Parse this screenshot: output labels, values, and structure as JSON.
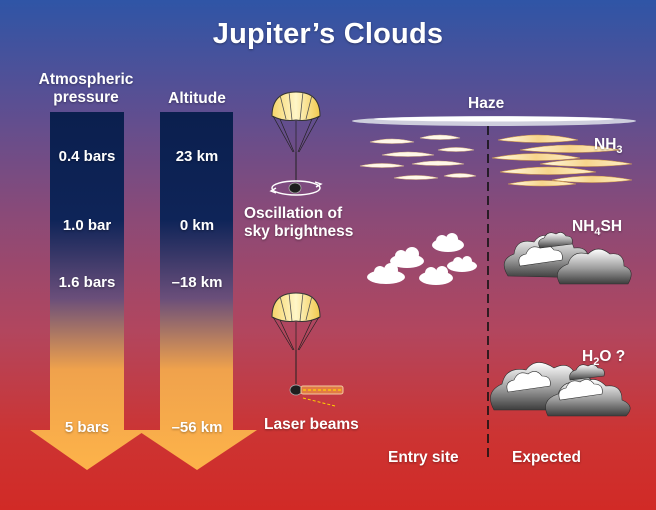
{
  "title": "Jupiter’s Clouds",
  "pressure_column": {
    "header_line1": "Atmospheric",
    "header_line2": "pressure",
    "labels": [
      "0.4 bars",
      "1.0 bar",
      "1.6 bars",
      "5 bars"
    ]
  },
  "altitude_column": {
    "header": "Altitude",
    "labels": [
      "23 km",
      "0 km",
      "–18 km",
      "–56 km"
    ]
  },
  "probe_notes": {
    "oscillation_line1": "Oscillation of",
    "oscillation_line2": "sky brightness",
    "laser": "Laser beams"
  },
  "cloud_layers": {
    "haze": "Haze",
    "nh3_main": "NH",
    "nh3_sub": "3",
    "nh4sh_pre": "NH",
    "nh4sh_sub": "4",
    "nh4sh_post": "SH",
    "h2o_pre": "H",
    "h2o_sub": "2",
    "h2o_post": "O ?"
  },
  "footer": {
    "entry_site": "Entry site",
    "expected": "Expected"
  },
  "colors": {
    "background_top": "#2f55a6",
    "background_bottom": "#d12a26",
    "arrow_top": "#0b1f4e",
    "arrow_bottom": "#fdb34a",
    "text": "#ffffff"
  }
}
